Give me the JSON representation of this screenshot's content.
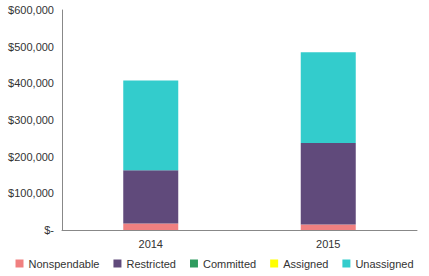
{
  "chart_data": {
    "type": "bar",
    "stacked": true,
    "categories": [
      "2014",
      "2015"
    ],
    "series": [
      {
        "name": "Nonspendable",
        "color": "#f08080",
        "values": [
          18000,
          15000
        ]
      },
      {
        "name": "Restricted",
        "color": "#604a7b",
        "values": [
          145000,
          222000
        ]
      },
      {
        "name": "Committed",
        "color": "#2e9b5e",
        "values": [
          0,
          0
        ]
      },
      {
        "name": "Assigned",
        "color": "#ffff00",
        "values": [
          0,
          0
        ]
      },
      {
        "name": "Unassigned",
        "color": "#33cccc",
        "values": [
          245000,
          248000
        ]
      }
    ],
    "ylim": [
      0,
      600000
    ],
    "yticks": [
      {
        "value": 0,
        "label": "$-"
      },
      {
        "value": 100000,
        "label": "$100,000"
      },
      {
        "value": 200000,
        "label": "$200,000"
      },
      {
        "value": 300000,
        "label": "$300,000"
      },
      {
        "value": 400000,
        "label": "$400,000"
      },
      {
        "value": 500000,
        "label": "$500,000"
      },
      {
        "value": 600000,
        "label": "$600,000"
      }
    ],
    "grid": false,
    "legend": "bottom"
  }
}
